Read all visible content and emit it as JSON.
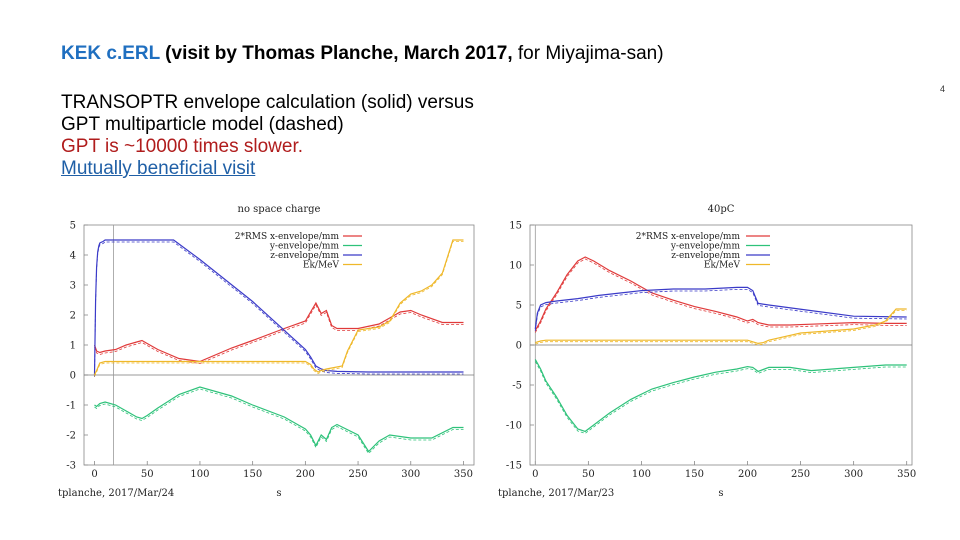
{
  "slide": {
    "title_kek": "KEK c.ERL",
    "title_bold": " (visit by Thomas Planche, March 2017,",
    "title_rest": " for Miyajima-san)",
    "page_number": "4",
    "line1": "TRANSOPTR envelope calculation (solid) versus",
    "line2": "GPT multiparticle model (dashed)",
    "line3": "GPT is ~10000 times slower.",
    "line4": "Mutually beneficial visit"
  },
  "colors": {
    "x": "#e03a3a",
    "y": "#2ec27a",
    "z": "#3b3bc8",
    "ek": "#efb82a",
    "title_accent": "#1f6fc0"
  },
  "chart_data": [
    {
      "type": "line",
      "title": "no space charge",
      "xlabel": "s",
      "footer": "tplanche, 2017/Mar/24",
      "xlim": [
        -10,
        360
      ],
      "ylim": [
        -3,
        5
      ],
      "xticks": [
        0,
        50,
        100,
        150,
        200,
        250,
        300,
        350
      ],
      "yticks": [
        -3,
        -2,
        -1,
        0,
        1,
        2,
        3,
        4,
        5
      ],
      "vline": 18,
      "legend_position": "top-right",
      "series": [
        {
          "name": "2*RMS x-envelope/mm",
          "color": "#e03a3a",
          "x": [
            0,
            2,
            5,
            10,
            20,
            30,
            40,
            45,
            50,
            60,
            80,
            100,
            130,
            150,
            180,
            200,
            205,
            210,
            215,
            220,
            225,
            230,
            250,
            270,
            280,
            290,
            300,
            310,
            330,
            350
          ],
          "y": [
            1.0,
            0.8,
            0.75,
            0.8,
            0.85,
            1.0,
            1.1,
            1.15,
            1.05,
            0.85,
            0.55,
            0.45,
            0.9,
            1.15,
            1.55,
            1.8,
            2.1,
            2.4,
            2.05,
            2.15,
            1.65,
            1.55,
            1.55,
            1.7,
            1.9,
            2.1,
            2.15,
            2.0,
            1.75,
            1.75
          ]
        },
        {
          "name": "y-envelope/mm",
          "color": "#2ec27a",
          "x": [
            0,
            2,
            5,
            10,
            20,
            30,
            40,
            45,
            50,
            60,
            80,
            100,
            130,
            150,
            180,
            200,
            205,
            210,
            215,
            220,
            225,
            230,
            250,
            260,
            270,
            280,
            300,
            320,
            340,
            350
          ],
          "y": [
            -1.0,
            -1.05,
            -0.95,
            -0.9,
            -1.0,
            -1.2,
            -1.4,
            -1.45,
            -1.35,
            -1.1,
            -0.65,
            -0.4,
            -0.7,
            -1.0,
            -1.4,
            -1.8,
            -2.0,
            -2.35,
            -2.0,
            -2.15,
            -1.75,
            -1.65,
            -2.0,
            -2.55,
            -2.2,
            -2.0,
            -2.1,
            -2.1,
            -1.75,
            -1.75
          ]
        },
        {
          "name": "z-envelope/mm",
          "color": "#3b3bc8",
          "x": [
            0,
            1,
            2,
            3,
            4,
            5,
            6,
            8,
            10,
            20,
            40,
            60,
            75,
            100,
            150,
            200,
            205,
            210,
            215,
            220,
            230,
            260,
            300,
            350
          ],
          "y": [
            0,
            2.5,
            3.6,
            4.1,
            4.3,
            4.4,
            4.42,
            4.45,
            4.5,
            4.5,
            4.5,
            4.5,
            4.5,
            3.85,
            2.45,
            0.85,
            0.6,
            0.3,
            0.2,
            0.15,
            0.12,
            0.1,
            0.1,
            0.1
          ]
        },
        {
          "name": "Ek/MeV",
          "color": "#efb82a",
          "x": [
            0,
            2,
            5,
            10,
            50,
            100,
            150,
            200,
            205,
            208,
            210,
            212,
            215,
            220,
            235,
            240,
            250,
            270,
            280,
            290,
            300,
            310,
            320,
            330,
            340,
            350
          ],
          "y": [
            0,
            0.15,
            0.4,
            0.45,
            0.45,
            0.45,
            0.45,
            0.45,
            0.35,
            0.2,
            0.15,
            0.1,
            0.15,
            0.2,
            0.3,
            0.8,
            1.5,
            1.6,
            1.8,
            2.4,
            2.7,
            2.8,
            3.0,
            3.4,
            4.5,
            4.5
          ]
        }
      ]
    },
    {
      "type": "line",
      "title": "40pC",
      "xlabel": "s",
      "footer": "tplanche, 2017/Mar/23",
      "xlim": [
        -5,
        355
      ],
      "ylim": [
        -15,
        15
      ],
      "xticks": [
        0,
        50,
        100,
        150,
        200,
        250,
        300,
        350
      ],
      "yticks": [
        -15,
        -10,
        -5,
        0,
        5,
        10,
        15
      ],
      "vline": 0,
      "legend_position": "top-right",
      "series": [
        {
          "name": "2*RMS x-envelope/mm",
          "color": "#e03a3a",
          "x": [
            0,
            5,
            10,
            20,
            30,
            40,
            47,
            55,
            70,
            90,
            110,
            130,
            150,
            170,
            190,
            200,
            205,
            210,
            220,
            240,
            260,
            300,
            330,
            350
          ],
          "y": [
            1.8,
            3.0,
            4.5,
            6.5,
            8.8,
            10.5,
            11.0,
            10.5,
            9.3,
            8.0,
            6.5,
            5.6,
            4.8,
            4.2,
            3.5,
            3.0,
            3.2,
            2.8,
            2.5,
            2.5,
            2.6,
            2.8,
            2.7,
            2.7
          ]
        },
        {
          "name": "y-envelope/mm",
          "color": "#2ec27a",
          "x": [
            0,
            5,
            10,
            20,
            30,
            40,
            47,
            55,
            70,
            90,
            110,
            130,
            150,
            170,
            190,
            200,
            205,
            210,
            220,
            240,
            260,
            300,
            330,
            350
          ],
          "y": [
            -1.8,
            -3.0,
            -4.5,
            -6.5,
            -8.8,
            -10.5,
            -10.8,
            -10.0,
            -8.5,
            -6.8,
            -5.5,
            -4.7,
            -4.0,
            -3.4,
            -3.0,
            -2.7,
            -2.8,
            -3.3,
            -2.8,
            -2.8,
            -3.2,
            -2.8,
            -2.5,
            -2.5
          ]
        },
        {
          "name": "z-envelope/mm",
          "color": "#3b3bc8",
          "x": [
            0,
            2,
            5,
            10,
            20,
            40,
            60,
            80,
            100,
            130,
            160,
            190,
            200,
            205,
            210,
            220,
            260,
            300,
            350
          ],
          "y": [
            2.0,
            4.0,
            5.0,
            5.3,
            5.5,
            5.8,
            6.2,
            6.5,
            6.8,
            7.0,
            7.0,
            7.2,
            7.2,
            6.8,
            5.2,
            5.0,
            4.3,
            3.6,
            3.5
          ]
        },
        {
          "name": "Ek/MeV",
          "color": "#efb82a",
          "x": [
            0,
            5,
            10,
            50,
            100,
            150,
            200,
            205,
            210,
            215,
            220,
            250,
            280,
            300,
            320,
            330,
            340,
            350
          ],
          "y": [
            0.3,
            0.5,
            0.6,
            0.6,
            0.6,
            0.6,
            0.6,
            0.4,
            0.2,
            0.3,
            0.6,
            1.5,
            1.8,
            2.0,
            2.5,
            3.0,
            4.5,
            4.5
          ]
        }
      ]
    }
  ]
}
